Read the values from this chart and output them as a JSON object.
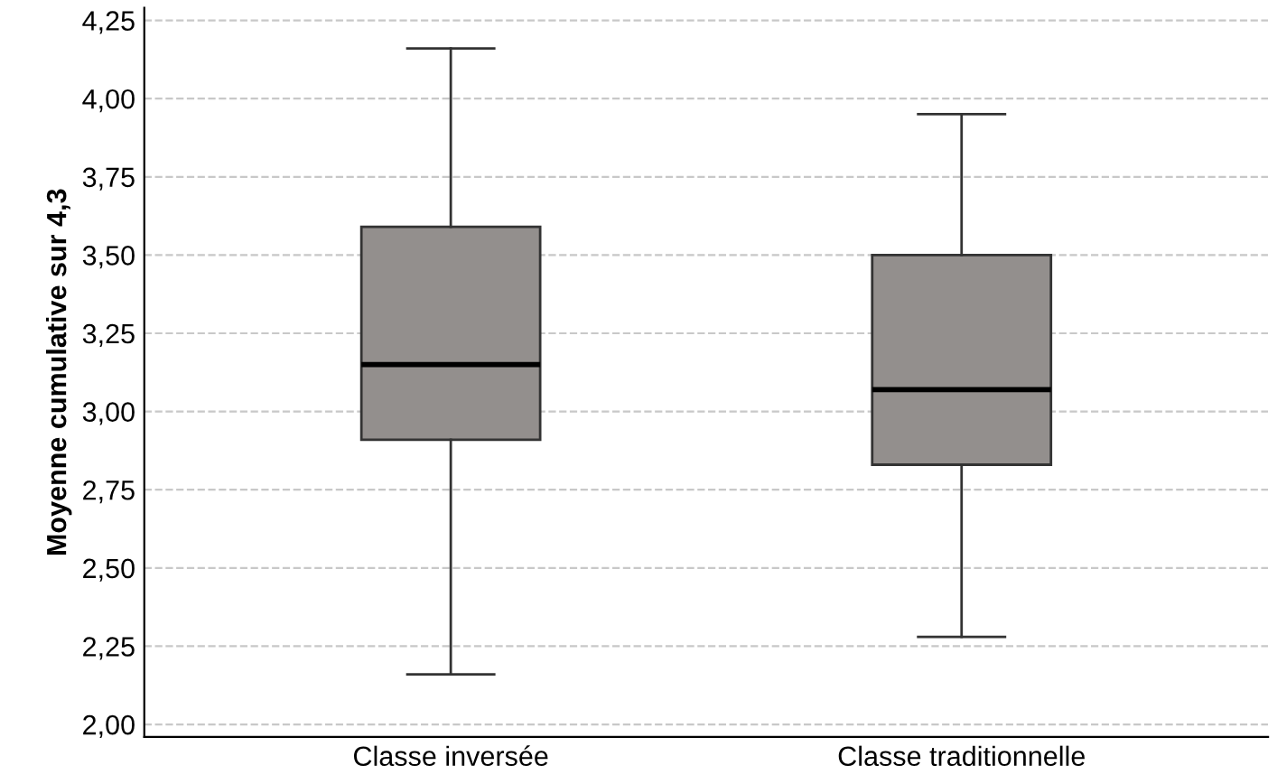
{
  "chart_data": {
    "type": "box",
    "ylabel": "Moyenne cumulative sur 4,3",
    "categories": [
      "Classe inversée",
      "Classe traditionnelle"
    ],
    "boxes": [
      {
        "low": 2.16,
        "q1": 2.91,
        "median": 3.15,
        "q3": 3.59,
        "high": 4.16
      },
      {
        "low": 2.28,
        "q1": 2.83,
        "median": 3.07,
        "q3": 3.5,
        "high": 3.95
      }
    ],
    "color": "#938f8d",
    "ylim": [
      1.96,
      4.29
    ],
    "yticks": [
      {
        "value": 2.0,
        "label": "2,00"
      },
      {
        "value": 2.25,
        "label": "2,25"
      },
      {
        "value": 2.5,
        "label": "2,50"
      },
      {
        "value": 2.75,
        "label": "2,75"
      },
      {
        "value": 3.0,
        "label": "3,00"
      },
      {
        "value": 3.25,
        "label": "3,25"
      },
      {
        "value": 3.5,
        "label": "3,50"
      },
      {
        "value": 3.75,
        "label": "3,75"
      },
      {
        "value": 4.0,
        "label": "4,00"
      },
      {
        "value": 4.25,
        "label": "4,25"
      }
    ],
    "grid": "y"
  }
}
